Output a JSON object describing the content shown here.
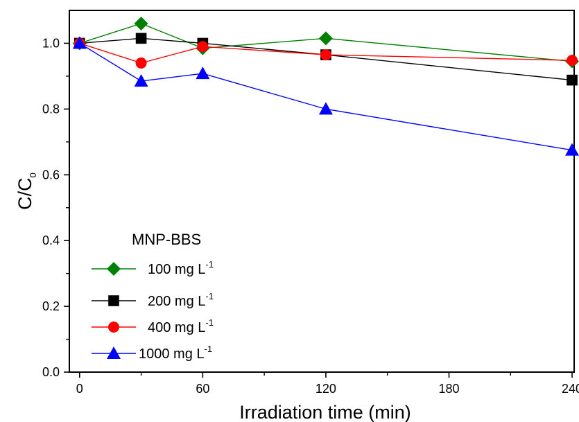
{
  "chart_data": {
    "type": "line",
    "xlabel": "Irradiation time (min)",
    "ylabel_main": "C/C",
    "ylabel_sub": "0",
    "xlim": [
      -5,
      241
    ],
    "ylim": [
      0.0,
      1.1
    ],
    "xticks": [
      0,
      60,
      120,
      180,
      240
    ],
    "xtick_labels": [
      "0",
      "60",
      "120",
      "180",
      "240"
    ],
    "yticks": [
      0.0,
      0.2,
      0.4,
      0.6,
      0.8,
      1.0
    ],
    "ytick_labels": [
      "0.0",
      "0.2",
      "0.4",
      "0.6",
      "0.8",
      "1.0"
    ],
    "x": [
      0,
      30,
      60,
      120,
      240
    ],
    "legend": {
      "title": "MNP-BBS",
      "placement": "lower-left"
    },
    "series": [
      {
        "name": "100 mg L",
        "name_sup": "-1",
        "color": "#008000",
        "marker": "diamond",
        "values": [
          1.0,
          1.06,
          0.985,
          1.015,
          0.945
        ]
      },
      {
        "name": "200 mg L",
        "name_sup": "-1",
        "color": "#000000",
        "marker": "square",
        "values": [
          1.0,
          1.015,
          1.0,
          0.965,
          0.888
        ]
      },
      {
        "name": "400 mg L",
        "name_sup": "-1",
        "color": "#ff0000",
        "marker": "circle",
        "values": [
          1.0,
          0.94,
          0.99,
          0.965,
          0.948
        ]
      },
      {
        "name": "1000 mg L",
        "name_sup": "-1",
        "color": "#0000ff",
        "marker": "triangle",
        "values": [
          1.0,
          0.885,
          0.908,
          0.8,
          0.675
        ]
      }
    ]
  }
}
